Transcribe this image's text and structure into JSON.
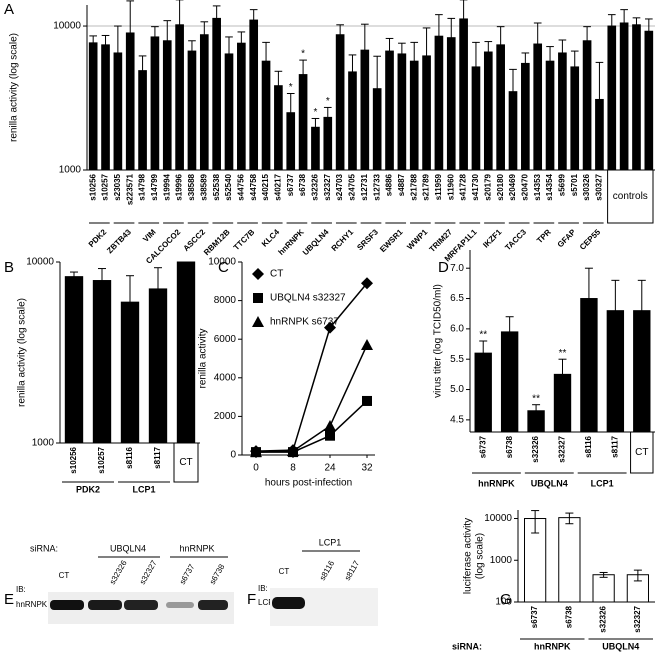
{
  "chart_data": [
    {
      "panel": "A",
      "type": "bar",
      "log_scale": true,
      "ylabel": "renilla activity (log scale)",
      "ylim": [
        1000,
        14000
      ],
      "yticks": [
        1000,
        10000
      ],
      "grid": true,
      "color": "#000000",
      "error_bars": "up",
      "categories": [
        "s10256",
        "s10257",
        "s23035",
        "s223571",
        "s14798",
        "s14799",
        "s19994",
        "s19996",
        "s38588",
        "s38589",
        "s52538",
        "s52540",
        "s44756",
        "s44758",
        "s40215",
        "s40217",
        "s6737",
        "s6738",
        "s32326",
        "s32327",
        "s24703",
        "s24705",
        "s12731",
        "s12733",
        "s4886",
        "s4887",
        "s21788",
        "s21789",
        "s11959",
        "s11960",
        "s41728",
        "s41730",
        "s20179",
        "s20180",
        "s20469",
        "s20470",
        "s14353",
        "s14354",
        "s5699",
        "s5701",
        "s30326",
        "s30327",
        null,
        null,
        null,
        null
      ],
      "groups": [
        "PDK2",
        "PDK2",
        "ZBTB43",
        "ZBTB43",
        "VIM",
        "VIM",
        "CALCOCO2",
        "CALCOCO2",
        "ASCC2",
        "ASCC2",
        "RBM12B",
        "RBM12B",
        "TTC7B",
        "TTC7B",
        "KLC4",
        "KLC4",
        "hnRNPK",
        "hnRNPK",
        "UBQLN4",
        "UBQLN4",
        "RCHY1",
        "RCHY1",
        "SRSF3",
        "SRSF3",
        "EWSR1",
        "EWSR1",
        "WWP1",
        "WWP1",
        "TRIM27",
        "TRIM27",
        "MRFAP1L1",
        "MRFAP1L1",
        "IKZF1",
        "IKZF1",
        "TACC3",
        "TACC3",
        "TPR",
        "TPR",
        "GFAP",
        "GFAP",
        "CEP55",
        "CEP55",
        "controls",
        "controls",
        "controls",
        "controls"
      ],
      "values": [
        7640,
        7400,
        6500,
        8950,
        4900,
        8400,
        7900,
        10200,
        6700,
        8700,
        11300,
        6400,
        7600,
        11000,
        5700,
        3850,
        2500,
        4600,
        1980,
        2320,
        8700,
        4800,
        6800,
        3670,
        6700,
        6400,
        5700,
        6200,
        8500,
        8300,
        11200,
        5200,
        6600,
        7400,
        3500,
        5500,
        7500,
        5700,
        6500,
        5200,
        7900,
        3090,
        10000,
        10500,
        10200,
        9200
      ],
      "errors": [
        900,
        1200,
        3500,
        6000,
        1300,
        1500,
        3000,
        5000,
        1200,
        2000,
        2500,
        2000,
        1500,
        2000,
        2000,
        1000,
        900,
        1200,
        300,
        400,
        1500,
        1500,
        3500,
        2500,
        1500,
        1200,
        2000,
        3500,
        3500,
        3000,
        4000,
        2500,
        1200,
        2500,
        1500,
        1000,
        3000,
        1500,
        1500,
        1500,
        2000,
        2500,
        2000,
        2500,
        1200,
        2000
      ],
      "significance": [
        null,
        null,
        null,
        null,
        null,
        null,
        null,
        null,
        null,
        null,
        null,
        null,
        null,
        null,
        null,
        null,
        "*",
        "*",
        "*",
        "*",
        null,
        null,
        null,
        null,
        null,
        null,
        null,
        null,
        null,
        null,
        null,
        null,
        null,
        null,
        null,
        null,
        null,
        null,
        null,
        null,
        null,
        null,
        null,
        null,
        null,
        null
      ]
    },
    {
      "panel": "B",
      "type": "bar",
      "log_scale": true,
      "ylabel": "renilla activity (log scale)",
      "ylim": [
        1000,
        10000
      ],
      "yticks": [
        1000,
        10000
      ],
      "color": "#000000",
      "error_bars": "up",
      "categories": [
        "s10256",
        "s10257",
        "s8116",
        "s8117",
        null
      ],
      "groups": [
        "PDK2",
        "PDK2",
        "LCP1",
        "LCP1",
        "CT"
      ],
      "values": [
        8300,
        7900,
        6000,
        7100,
        10000
      ],
      "errors": [
        500,
        1300,
        2400,
        2200,
        0
      ]
    },
    {
      "panel": "C",
      "type": "line",
      "xlabel": "hours post-infection",
      "ylabel": "renilla activity",
      "categories": [
        "0",
        "8",
        "24",
        "32"
      ],
      "ylim": [
        0,
        10000
      ],
      "yticks": [
        0,
        2000,
        4000,
        6000,
        8000,
        10000
      ],
      "series": [
        {
          "name": "CT",
          "color": "#000000",
          "marker": "diamond",
          "values": [
            200,
            250,
            6600,
            8900
          ]
        },
        {
          "name": "UBQLN4 s32327",
          "color": "#000000",
          "marker": "square",
          "values": [
            150,
            150,
            1000,
            2800
          ]
        },
        {
          "name": "hnRNPK s6737",
          "color": "#000000",
          "marker": "triangle",
          "values": [
            150,
            200,
            1500,
            5700
          ]
        }
      ]
    },
    {
      "panel": "D",
      "type": "bar",
      "log_scale": false,
      "ylabel": "virus titer (log TCID50/ml)",
      "ylim": [
        4.3,
        7.3
      ],
      "yticks": [
        4.5,
        {
          "value": 5,
          "label": "5.0"
        },
        5.5,
        {
          "value": 6,
          "label": "6.0"
        },
        6.5,
        {
          "value": 7,
          "label": "7.0"
        }
      ],
      "color": "#000000",
      "error_bars": "up",
      "categories": [
        "s6737",
        "s6738",
        "s32326",
        "s32327",
        "s8116",
        "s8117",
        null
      ],
      "groups": [
        "hnRNPK",
        "hnRNPK",
        "UBQLN4",
        "UBQLN4",
        "LCP1",
        "LCP1",
        "CT"
      ],
      "values": [
        5.6,
        5.95,
        4.65,
        5.25,
        6.5,
        6.3,
        6.3
      ],
      "errors": [
        0.2,
        0.25,
        0.1,
        0.25,
        0.5,
        0.5,
        0.5
      ],
      "significance": [
        "**",
        null,
        "**",
        "**",
        null,
        null,
        null
      ]
    },
    {
      "panel": "G",
      "type": "bar",
      "log_scale": true,
      "ylabel": [
        "luciferase activity",
        "(log scale)"
      ],
      "ylim": [
        100,
        16000
      ],
      "yticks": [
        100,
        1000,
        10000
      ],
      "color": "#ffffff",
      "error_bars": "both",
      "row_label": "siRNA:",
      "categories": [
        "s6737",
        "s6738",
        "s32326",
        "s32327"
      ],
      "groups": [
        "hnRNPK",
        "hnRNPK",
        "UBQLN4",
        "UBQLN4"
      ],
      "values": [
        10000,
        10500,
        450,
        450
      ],
      "errors": [
        5500,
        3000,
        60,
        130
      ]
    }
  ],
  "blots": [
    {
      "panel": "E",
      "row_label": "siRNA:",
      "groups": [
        "UBQLN4",
        "hnRNPK"
      ],
      "lanes": [
        "CT",
        "s32326",
        "s32327",
        "s6737",
        "s6738"
      ],
      "ib_label": "IB:",
      "protein": "hnRNPK"
    },
    {
      "panel": "F",
      "groups": [
        "LCP1"
      ],
      "lanes": [
        "CT",
        "s8116",
        "s8117"
      ],
      "ib_label": "IB:",
      "protein": "LCP1"
    }
  ]
}
